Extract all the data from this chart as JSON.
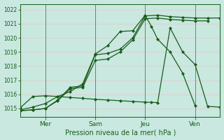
{
  "bg_color": "#c8e8e0",
  "grid_color": "#e8c8c8",
  "line_color": "#1a5c1a",
  "xlabel": "Pression niveau de la mer( hPa )",
  "yticks": [
    1015,
    1016,
    1017,
    1018,
    1019,
    1020,
    1021,
    1022
  ],
  "ylim": [
    1014.4,
    1022.4
  ],
  "xlim": [
    0,
    96
  ],
  "xtick_positions": [
    12,
    36,
    60,
    84
  ],
  "xtick_labels": [
    "Mer",
    "Sam",
    "Jeu",
    "Ven"
  ],
  "vline_positions": [
    0,
    12,
    24,
    36,
    48,
    60,
    72,
    84,
    96
  ],
  "line1_x": [
    0,
    6,
    12,
    18,
    24,
    30,
    36,
    42,
    48,
    54,
    60,
    66,
    72,
    78,
    84,
    90,
    96
  ],
  "line1_y": [
    1014.85,
    1014.9,
    1015.0,
    1015.6,
    1016.5,
    1016.6,
    1018.8,
    1018.9,
    1019.2,
    1020.0,
    1021.55,
    1021.6,
    1021.5,
    1021.45,
    1021.4,
    1021.4,
    1021.4
  ],
  "line2_x": [
    0,
    6,
    12,
    18,
    24,
    30,
    36,
    42,
    48,
    54,
    60,
    66,
    72,
    78,
    84,
    90
  ],
  "line2_y": [
    1014.85,
    1014.9,
    1015.0,
    1015.55,
    1016.4,
    1016.5,
    1018.4,
    1018.5,
    1019.0,
    1019.85,
    1021.35,
    1021.4,
    1021.3,
    1021.25,
    1021.2,
    1021.2
  ],
  "line3_x": [
    0,
    6,
    12,
    18,
    24,
    30,
    36,
    42,
    48,
    54,
    60,
    63,
    66,
    72,
    78,
    84
  ],
  "line3_y": [
    1014.9,
    1015.1,
    1015.35,
    1015.85,
    1016.2,
    1016.75,
    1018.85,
    1019.45,
    1020.45,
    1020.5,
    1021.6,
    1020.8,
    1019.9,
    1019.0,
    1017.5,
    1015.2
  ],
  "line4_x": [
    0,
    6,
    12,
    18,
    24,
    30,
    36,
    42,
    48,
    54,
    60,
    63,
    66,
    72,
    78,
    84,
    90,
    96
  ],
  "line4_y": [
    1015.05,
    1015.85,
    1015.9,
    1015.85,
    1015.78,
    1015.72,
    1015.65,
    1015.6,
    1015.55,
    1015.5,
    1015.45,
    1015.43,
    1015.42,
    1020.7,
    1019.0,
    1018.1,
    1015.15,
    1015.1
  ]
}
